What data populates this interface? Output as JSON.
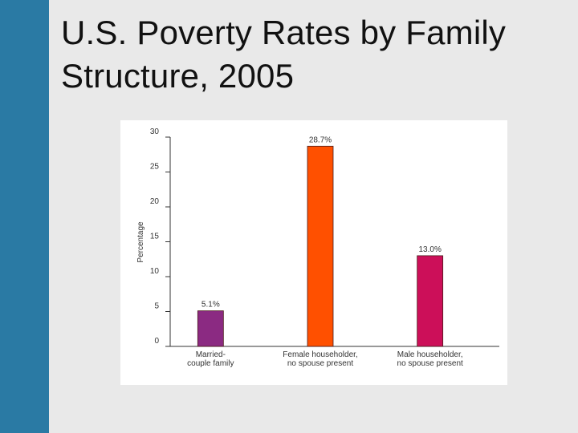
{
  "slide": {
    "title": "U.S. Poverty Rates by Family Structure, 2005",
    "accent_color": "#2a7aa4",
    "background_color": "#e9e9e9"
  },
  "chart_data": {
    "type": "bar",
    "title": "U.S. Poverty Rates by Family Structure, 2005",
    "xlabel": "",
    "ylabel": "Percentage",
    "ylim": [
      0,
      30
    ],
    "yticks": [
      0,
      5,
      10,
      15,
      20,
      25,
      30
    ],
    "grid": false,
    "categories": [
      [
        "Married-",
        "couple family"
      ],
      [
        "Female householder,",
        "no spouse present"
      ],
      [
        "Male householder,",
        "no spouse present"
      ]
    ],
    "values": [
      5.1,
      28.7,
      13.0
    ],
    "data_labels": [
      "5.1%",
      "28.7%",
      "13.0%"
    ],
    "colors": [
      "#8b2a82",
      "#ff5000",
      "#cc0f59"
    ]
  }
}
